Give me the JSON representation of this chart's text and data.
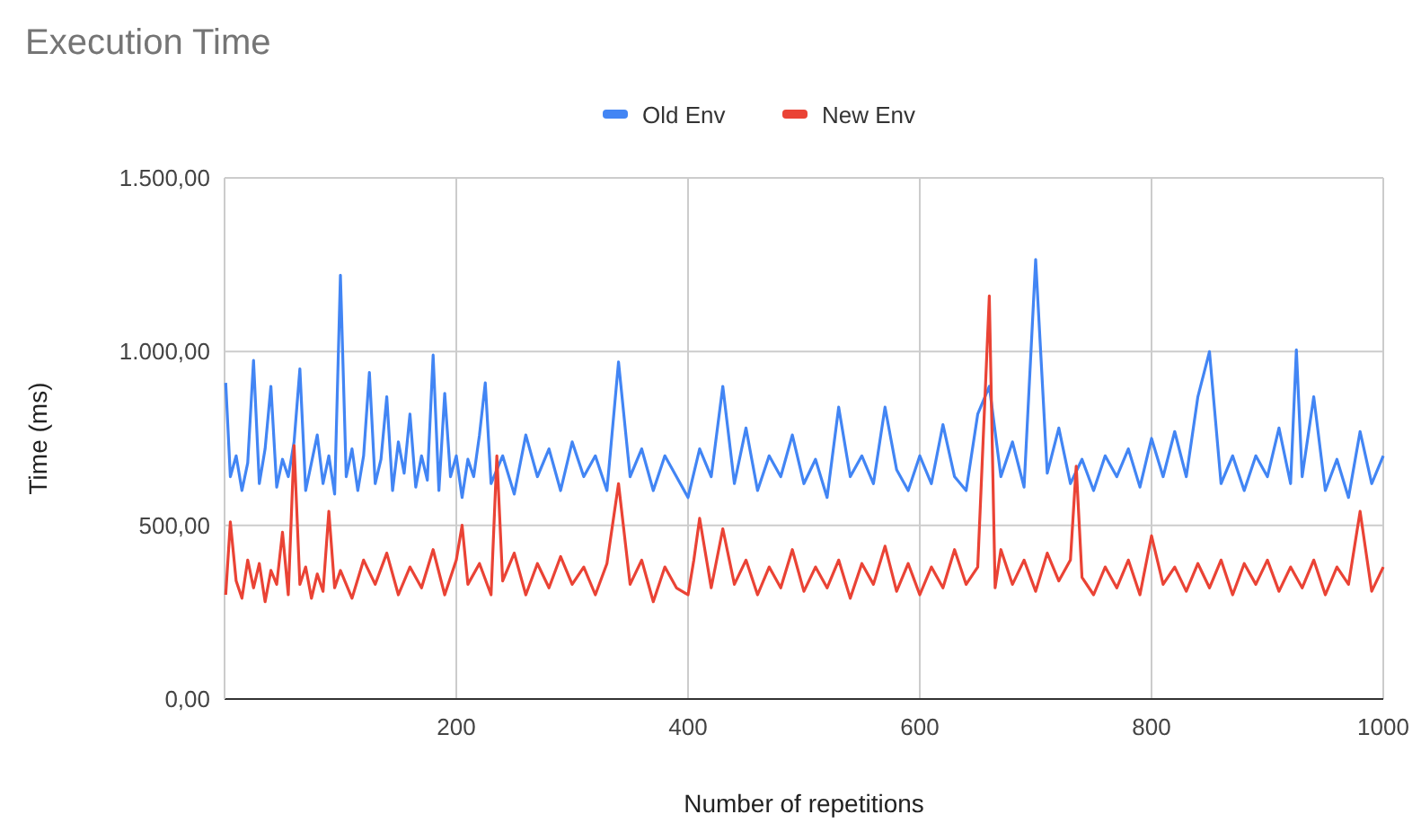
{
  "chart_data": {
    "type": "line",
    "title": "Execution Time",
    "xlabel": "Number of repetitions",
    "ylabel": "Time (ms)",
    "xlim": [
      0,
      1000
    ],
    "xticks": [
      200,
      400,
      600,
      800,
      1000
    ],
    "ylim": [
      0,
      1500
    ],
    "yticks": [
      {
        "value": 0,
        "label": "0,00"
      },
      {
        "value": 500,
        "label": "500,00"
      },
      {
        "value": 1000,
        "label": "1.000,00"
      },
      {
        "value": 1500,
        "label": "1.500,00"
      }
    ],
    "grid": true,
    "legend": "top",
    "line_style": "solid",
    "series": [
      {
        "name": "Old Env",
        "color": "#4285f4",
        "x": [
          1,
          5,
          10,
          15,
          20,
          25,
          30,
          35,
          40,
          45,
          50,
          55,
          60,
          65,
          70,
          75,
          80,
          85,
          90,
          95,
          100,
          105,
          110,
          115,
          120,
          125,
          130,
          135,
          140,
          145,
          150,
          155,
          160,
          165,
          170,
          175,
          180,
          185,
          190,
          195,
          200,
          205,
          210,
          215,
          220,
          225,
          230,
          240,
          250,
          260,
          270,
          280,
          290,
          300,
          310,
          320,
          330,
          340,
          350,
          360,
          370,
          380,
          390,
          400,
          410,
          420,
          430,
          440,
          450,
          460,
          470,
          480,
          490,
          500,
          510,
          520,
          530,
          540,
          550,
          560,
          570,
          580,
          590,
          600,
          610,
          620,
          630,
          640,
          650,
          660,
          670,
          680,
          690,
          700,
          710,
          720,
          730,
          740,
          750,
          760,
          770,
          780,
          790,
          800,
          810,
          820,
          830,
          840,
          850,
          860,
          870,
          880,
          890,
          900,
          910,
          920,
          925,
          930,
          940,
          950,
          960,
          970,
          980,
          990,
          1000
        ],
        "values": [
          910,
          640,
          700,
          600,
          680,
          975,
          620,
          720,
          900,
          610,
          690,
          640,
          740,
          950,
          600,
          680,
          760,
          620,
          700,
          590,
          1220,
          640,
          720,
          600,
          700,
          940,
          620,
          690,
          870,
          600,
          740,
          650,
          820,
          610,
          700,
          630,
          990,
          600,
          880,
          640,
          700,
          580,
          690,
          640,
          760,
          910,
          620,
          700,
          590,
          760,
          640,
          720,
          600,
          740,
          640,
          700,
          600,
          970,
          640,
          720,
          600,
          700,
          640,
          580,
          720,
          640,
          900,
          620,
          780,
          600,
          700,
          640,
          760,
          620,
          690,
          580,
          840,
          640,
          700,
          620,
          840,
          660,
          600,
          700,
          620,
          790,
          640,
          600,
          820,
          900,
          640,
          740,
          610,
          1265,
          650,
          780,
          620,
          690,
          600,
          700,
          640,
          720,
          610,
          750,
          640,
          770,
          640,
          870,
          1000,
          620,
          700,
          600,
          700,
          640,
          780,
          620,
          1005,
          640,
          870,
          600,
          690,
          580,
          770,
          620,
          700
        ]
      },
      {
        "name": "New Env",
        "color": "#ea4335",
        "x": [
          1,
          5,
          10,
          15,
          20,
          25,
          30,
          35,
          40,
          45,
          50,
          55,
          60,
          65,
          70,
          75,
          80,
          85,
          90,
          95,
          100,
          110,
          120,
          130,
          140,
          150,
          160,
          170,
          180,
          190,
          200,
          205,
          210,
          220,
          230,
          235,
          240,
          250,
          260,
          270,
          280,
          290,
          300,
          310,
          320,
          330,
          340,
          350,
          360,
          370,
          380,
          390,
          400,
          405,
          410,
          420,
          430,
          440,
          450,
          460,
          470,
          480,
          490,
          500,
          510,
          520,
          530,
          540,
          550,
          560,
          570,
          580,
          590,
          600,
          610,
          620,
          630,
          640,
          650,
          660,
          665,
          670,
          680,
          690,
          700,
          710,
          720,
          730,
          735,
          740,
          750,
          760,
          770,
          780,
          790,
          800,
          810,
          820,
          830,
          840,
          850,
          860,
          870,
          880,
          890,
          900,
          910,
          920,
          930,
          940,
          950,
          960,
          970,
          980,
          990,
          1000
        ],
        "values": [
          300,
          510,
          340,
          290,
          400,
          320,
          390,
          280,
          370,
          330,
          480,
          300,
          730,
          330,
          380,
          290,
          360,
          310,
          540,
          320,
          370,
          290,
          400,
          330,
          420,
          300,
          380,
          320,
          430,
          300,
          400,
          500,
          330,
          390,
          300,
          700,
          340,
          420,
          300,
          390,
          320,
          410,
          330,
          380,
          300,
          390,
          620,
          330,
          400,
          280,
          380,
          320,
          300,
          400,
          520,
          320,
          490,
          330,
          400,
          300,
          380,
          320,
          430,
          310,
          380,
          320,
          400,
          290,
          390,
          330,
          440,
          310,
          390,
          300,
          380,
          320,
          430,
          330,
          380,
          1160,
          320,
          430,
          330,
          400,
          310,
          420,
          340,
          400,
          670,
          350,
          300,
          380,
          320,
          400,
          300,
          470,
          330,
          380,
          310,
          390,
          320,
          400,
          300,
          390,
          330,
          400,
          310,
          380,
          320,
          400,
          300,
          380,
          330,
          540,
          310,
          380
        ]
      }
    ]
  }
}
